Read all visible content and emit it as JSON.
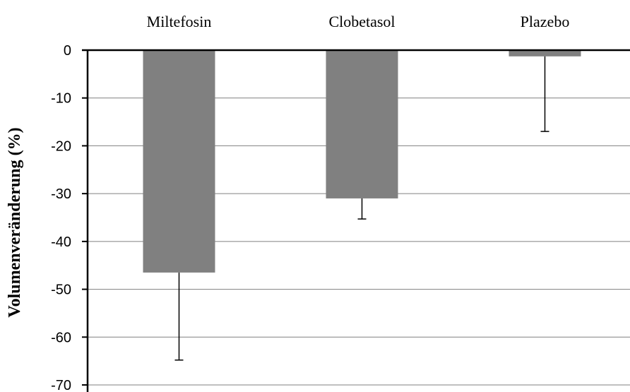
{
  "chart_data": {
    "type": "bar",
    "categories": [
      "Miltefosin",
      "Clobetasol",
      "Plazebo"
    ],
    "values": [
      -46.5,
      -31,
      -1.3
    ],
    "error_bars": [
      18.3,
      4.3,
      15.7
    ],
    "ylabel": "Volumenveränderung (%)",
    "xlabel": "",
    "ylim": [
      -70,
      0
    ],
    "yticks": [
      0,
      -10,
      -20,
      -30,
      -40,
      -50,
      -60,
      -70
    ],
    "ytick_labels": [
      "0",
      "-10",
      "-20",
      "-30",
      "-40",
      "-50",
      "-60",
      "-70"
    ],
    "category_axis_position": "top",
    "grid": true,
    "bar_color": "#808080",
    "grid_color": "#808080",
    "axis_color": "#000000"
  }
}
